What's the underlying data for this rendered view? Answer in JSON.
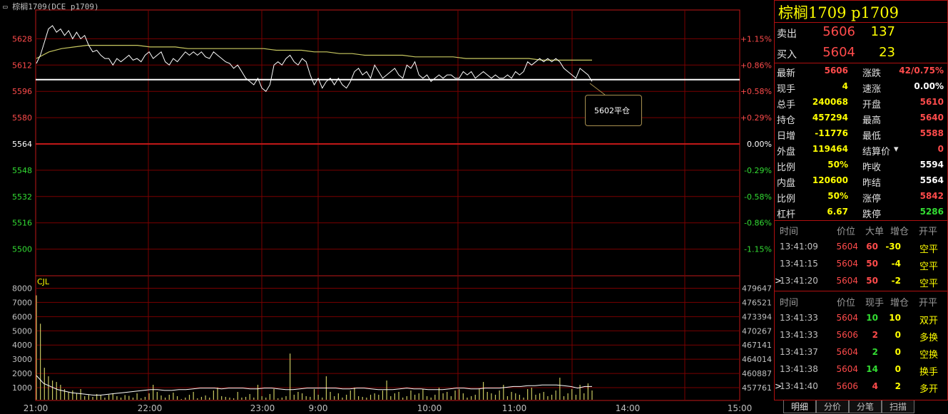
{
  "window_title": "棕榈1709(DCE p1709)",
  "chart_data": {
    "type": "line",
    "price_axis": {
      "ticks": [
        5628,
        5612,
        5596,
        5580,
        5564,
        5548,
        5532,
        5516,
        5500
      ],
      "baseline": 5564
    },
    "percent_axis": {
      "ticks": [
        "+1.15%",
        "+0.86%",
        "+0.58%",
        "+0.29%",
        "0.00%",
        "-0.29%",
        "-0.58%",
        "-0.86%",
        "-1.15%"
      ]
    },
    "volume_axis": {
      "ticks": [
        8000,
        7000,
        6000,
        5000,
        4000,
        3000,
        2000,
        1000
      ],
      "label": "CJL"
    },
    "open_interest_axis": {
      "ticks": [
        479647,
        476521,
        473394,
        470267,
        467141,
        464014,
        460887,
        457761
      ]
    },
    "time_labels": [
      "21:00",
      "22:00",
      "23:00",
      "9:00",
      "10:00",
      "11:00",
      "14:00",
      "15:00"
    ],
    "current_line_price": 5604,
    "callout_text": "5602平仓",
    "price_series": [
      5613,
      5618,
      5626,
      5634,
      5636,
      5632,
      5634,
      5630,
      5633,
      5628,
      5632,
      5628,
      5630,
      5624,
      5620,
      5621,
      5618,
      5616,
      5616,
      5612,
      5616,
      5614,
      5616,
      5618,
      5615,
      5616,
      5614,
      5618,
      5620,
      5616,
      5618,
      5620,
      5614,
      5612,
      5616,
      5614,
      5617,
      5620,
      5618,
      5620,
      5618,
      5620,
      5617,
      5616,
      5620,
      5618,
      5616,
      5614,
      5613,
      5610,
      5612,
      5608,
      5604,
      5602,
      5600,
      5604,
      5598,
      5596,
      5600,
      5612,
      5614,
      5612,
      5616,
      5618,
      5614,
      5612,
      5616,
      5614,
      5606,
      5600,
      5604,
      5598,
      5602,
      5604,
      5600,
      5604,
      5600,
      5598,
      5602,
      5608,
      5610,
      5606,
      5608,
      5604,
      5612,
      5608,
      5604,
      5606,
      5608,
      5610,
      5606,
      5604,
      5612,
      5610,
      5614,
      5606,
      5604,
      5606,
      5602,
      5604,
      5606,
      5604,
      5606,
      5606,
      5604,
      5604,
      5608,
      5606,
      5608,
      5604,
      5606,
      5608,
      5606,
      5604,
      5606,
      5604,
      5604,
      5606,
      5604,
      5608,
      5606,
      5608,
      5614,
      5612,
      5614,
      5616,
      5614,
      5616,
      5614,
      5616,
      5614,
      5610,
      5608,
      5606,
      5604,
      5610,
      5608,
      5606,
      5602
    ],
    "avg_series": [
      5616,
      5620,
      5622,
      5623,
      5624,
      5624,
      5624,
      5624,
      5624,
      5623,
      5623,
      5623,
      5622,
      5622,
      5622,
      5622,
      5622,
      5622,
      5622,
      5621,
      5621,
      5621,
      5620,
      5620,
      5619,
      5619,
      5618,
      5618,
      5618,
      5618,
      5617,
      5617,
      5617,
      5617,
      5616,
      5616,
      5616,
      5616,
      5616,
      5616,
      5615,
      5615,
      5615,
      5615,
      5615
    ],
    "volume_series": [
      7500,
      5500,
      2400,
      1800,
      1500,
      1400,
      1200,
      900,
      700,
      800,
      600,
      900,
      400,
      500,
      350,
      550,
      450,
      300,
      500,
      600,
      400,
      300,
      480,
      420,
      300,
      600,
      250,
      350,
      600,
      1200,
      700,
      450,
      300,
      500,
      650,
      400,
      200,
      300,
      500,
      700,
      250,
      350,
      450,
      300,
      800,
      1000,
      400,
      350,
      300,
      250,
      700,
      300,
      350,
      550,
      300,
      1200,
      400,
      300,
      550,
      900,
      250,
      300,
      400,
      3400,
      500,
      700,
      600,
      400,
      350,
      900,
      500,
      300,
      1800,
      700,
      400,
      600,
      300,
      500,
      800,
      1000,
      400,
      350,
      300,
      500,
      600,
      500,
      800,
      1500,
      400,
      600,
      700,
      300,
      400,
      800,
      500,
      600,
      900,
      400,
      300,
      500,
      1000,
      600,
      700,
      400,
      800,
      900,
      600,
      300,
      400,
      500,
      900,
      1400,
      700,
      600,
      500,
      800,
      1200,
      400,
      700,
      600,
      500,
      300,
      900,
      1000,
      500,
      600,
      700,
      400,
      500,
      800,
      1700,
      400,
      600,
      900,
      500,
      1200,
      600,
      1300,
      800
    ],
    "oi_series": [
      1500,
      1000,
      800,
      600,
      500,
      400,
      350,
      300,
      250,
      250,
      300,
      350,
      400,
      450,
      500,
      550,
      600,
      600,
      550,
      550,
      600,
      600,
      650,
      700,
      700,
      700,
      650,
      700,
      700,
      700,
      650,
      650,
      700,
      700,
      650,
      600,
      600,
      650,
      700,
      700,
      700,
      700,
      700,
      650,
      650,
      700,
      700,
      650,
      600,
      600,
      600,
      650,
      700,
      650,
      650,
      600,
      600,
      600,
      650,
      700,
      700,
      650,
      650,
      700,
      700,
      700,
      750,
      800,
      800,
      850,
      850,
      900,
      900,
      900,
      850,
      800,
      700,
      800,
      800
    ]
  },
  "panel": {
    "title": "棕榈1709  p1709",
    "ask": {
      "label": "卖出",
      "price": "5606",
      "vol": "137"
    },
    "bid": {
      "label": "买入",
      "price": "5604",
      "vol": "23"
    },
    "stats": [
      {
        "l1": "最新",
        "v1": "5606",
        "c1": "#ff4b4b",
        "l2": "涨跌",
        "v2": "42/0.75%",
        "c2": "#ff4b4b"
      },
      {
        "l1": "现手",
        "v1": "4",
        "c1": "#ffff00",
        "l2": "速涨",
        "v2": "0.00%",
        "c2": "#ffffff"
      },
      {
        "l1": "总手",
        "v1": "240068",
        "c1": "#ffff00",
        "l2": "开盘",
        "v2": "5610",
        "c2": "#ff4b4b"
      },
      {
        "l1": "持仓",
        "v1": "457294",
        "c1": "#ffff00",
        "l2": "最高",
        "v2": "5640",
        "c2": "#ff4b4b"
      },
      {
        "l1": "日增",
        "v1": "-11776",
        "c1": "#ffff00",
        "l2": "最低",
        "v2": "5588",
        "c2": "#ff4b4b"
      },
      {
        "l1": "外盘",
        "v1": "119464",
        "c1": "#ffff00",
        "l2": "结算价",
        "v2": "0",
        "c2": "#ff4b4b"
      },
      {
        "l1": "比例",
        "v1": "50%",
        "c1": "#ffff00",
        "l2": "昨收",
        "v2": "5594",
        "c2": "#ffffff"
      },
      {
        "l1": "内盘",
        "v1": "120600",
        "c1": "#ffff00",
        "l2": "昨结",
        "v2": "5564",
        "c2": "#ffffff"
      },
      {
        "l1": "比例",
        "v1": "50%",
        "c1": "#ffff00",
        "l2": "涨停",
        "v2": "5842",
        "c2": "#ff4b4b"
      },
      {
        "l1": "杠杆",
        "v1": "6.67",
        "c1": "#ffff00",
        "l2": "跌停",
        "v2": "5286",
        "c2": "#33dd33"
      }
    ],
    "big_head": {
      "time": "时间",
      "price": "价位",
      "qty": "大单",
      "oi": "增仓",
      "type": "开平"
    },
    "big_rows": [
      {
        "time": "13:41:09",
        "price": "5604",
        "qty": "60",
        "oi": "-30",
        "type": "空平",
        "marker": ""
      },
      {
        "time": "13:41:15",
        "price": "5604",
        "qty": "50",
        "oi": "-4",
        "type": "空平",
        "marker": ""
      },
      {
        "time": "13:41:20",
        "price": "5604",
        "qty": "50",
        "oi": "-2",
        "type": "空平",
        "marker": ">"
      }
    ],
    "tick_head": {
      "time": "时间",
      "price": "价位",
      "qty": "现手",
      "oi": "增仓",
      "type": "开平"
    },
    "tick_rows": [
      {
        "time": "13:41:33",
        "price": "5604",
        "pc": "#ff4b4b",
        "qty": "10",
        "qc": "#33dd33",
        "oi": "10",
        "type": "双开",
        "marker": ""
      },
      {
        "time": "13:41:33",
        "price": "5606",
        "pc": "#ff4b4b",
        "qty": "2",
        "qc": "#ff4b4b",
        "oi": "0",
        "type": "多换",
        "marker": ""
      },
      {
        "time": "13:41:37",
        "price": "5604",
        "pc": "#ff4b4b",
        "qty": "2",
        "qc": "#33dd33",
        "oi": "0",
        "type": "空换",
        "marker": ""
      },
      {
        "time": "13:41:38",
        "price": "5604",
        "pc": "#ff4b4b",
        "qty": "14",
        "qc": "#33dd33",
        "oi": "0",
        "type": "换手",
        "marker": ""
      },
      {
        "time": "13:41:40",
        "price": "5606",
        "pc": "#ff4b4b",
        "qty": "4",
        "qc": "#ff4b4b",
        "oi": "2",
        "type": "多开",
        "marker": ">"
      }
    ],
    "tabs": [
      "明细",
      "分价",
      "分笔",
      "扫描"
    ]
  },
  "colors": {
    "grid": "#7a0000",
    "frame": "#c01818",
    "price_line": "#ffffff",
    "avg_line": "#c8c860",
    "up": "#ff4b4b",
    "down": "#33dd33",
    "volume": "#c8c860"
  }
}
